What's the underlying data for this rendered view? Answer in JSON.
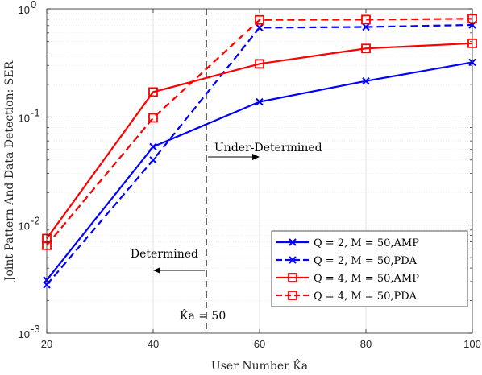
{
  "chart_data": {
    "type": "line",
    "title": "",
    "xlabel": "User Number K̂a",
    "ylabel": "Joint Pattern And Data Detection: SER",
    "x": [
      20,
      40,
      60,
      80,
      100
    ],
    "xlim": [
      20,
      100
    ],
    "ylim": [
      0.001,
      1
    ],
    "yscale": "log",
    "xticks": [
      20,
      40,
      60,
      80,
      100
    ],
    "xtick_labels": [
      "20",
      "40",
      "60",
      "80",
      "100"
    ],
    "ytick_labels": [
      {
        "base": "10",
        "exp": "-3",
        "value": 0.001
      },
      {
        "base": "10",
        "exp": "-2",
        "value": 0.01
      },
      {
        "base": "10",
        "exp": "-1",
        "value": 0.1
      },
      {
        "base": "10",
        "exp": "0",
        "value": 1
      }
    ],
    "grid": true,
    "legend_position": "bottom-right",
    "series": [
      {
        "name": "Q = 2, M = 50,AMP",
        "color": "#0000ff",
        "dash": "solid",
        "marker": "x",
        "values": [
          0.0031,
          0.053,
          0.138,
          0.215,
          0.32
        ]
      },
      {
        "name": "Q = 2, M = 50,PDA",
        "color": "#0000ff",
        "dash": "dashed",
        "marker": "x",
        "values": [
          0.0028,
          0.04,
          0.67,
          0.68,
          0.71
        ]
      },
      {
        "name": "Q = 4, M = 50,AMP",
        "color": "#ff0000",
        "dash": "solid",
        "marker": "square",
        "values": [
          0.0075,
          0.17,
          0.31,
          0.43,
          0.48
        ]
      },
      {
        "name": "Q = 4, M = 50,PDA",
        "color": "#ff0000",
        "dash": "dashed",
        "marker": "square",
        "values": [
          0.0065,
          0.098,
          0.79,
          0.795,
          0.81
        ]
      }
    ],
    "annotations": {
      "threshold_x": 50,
      "threshold_label": "K̂a = 50",
      "under_determined": "Under-Determined",
      "determined": "Determined"
    }
  }
}
